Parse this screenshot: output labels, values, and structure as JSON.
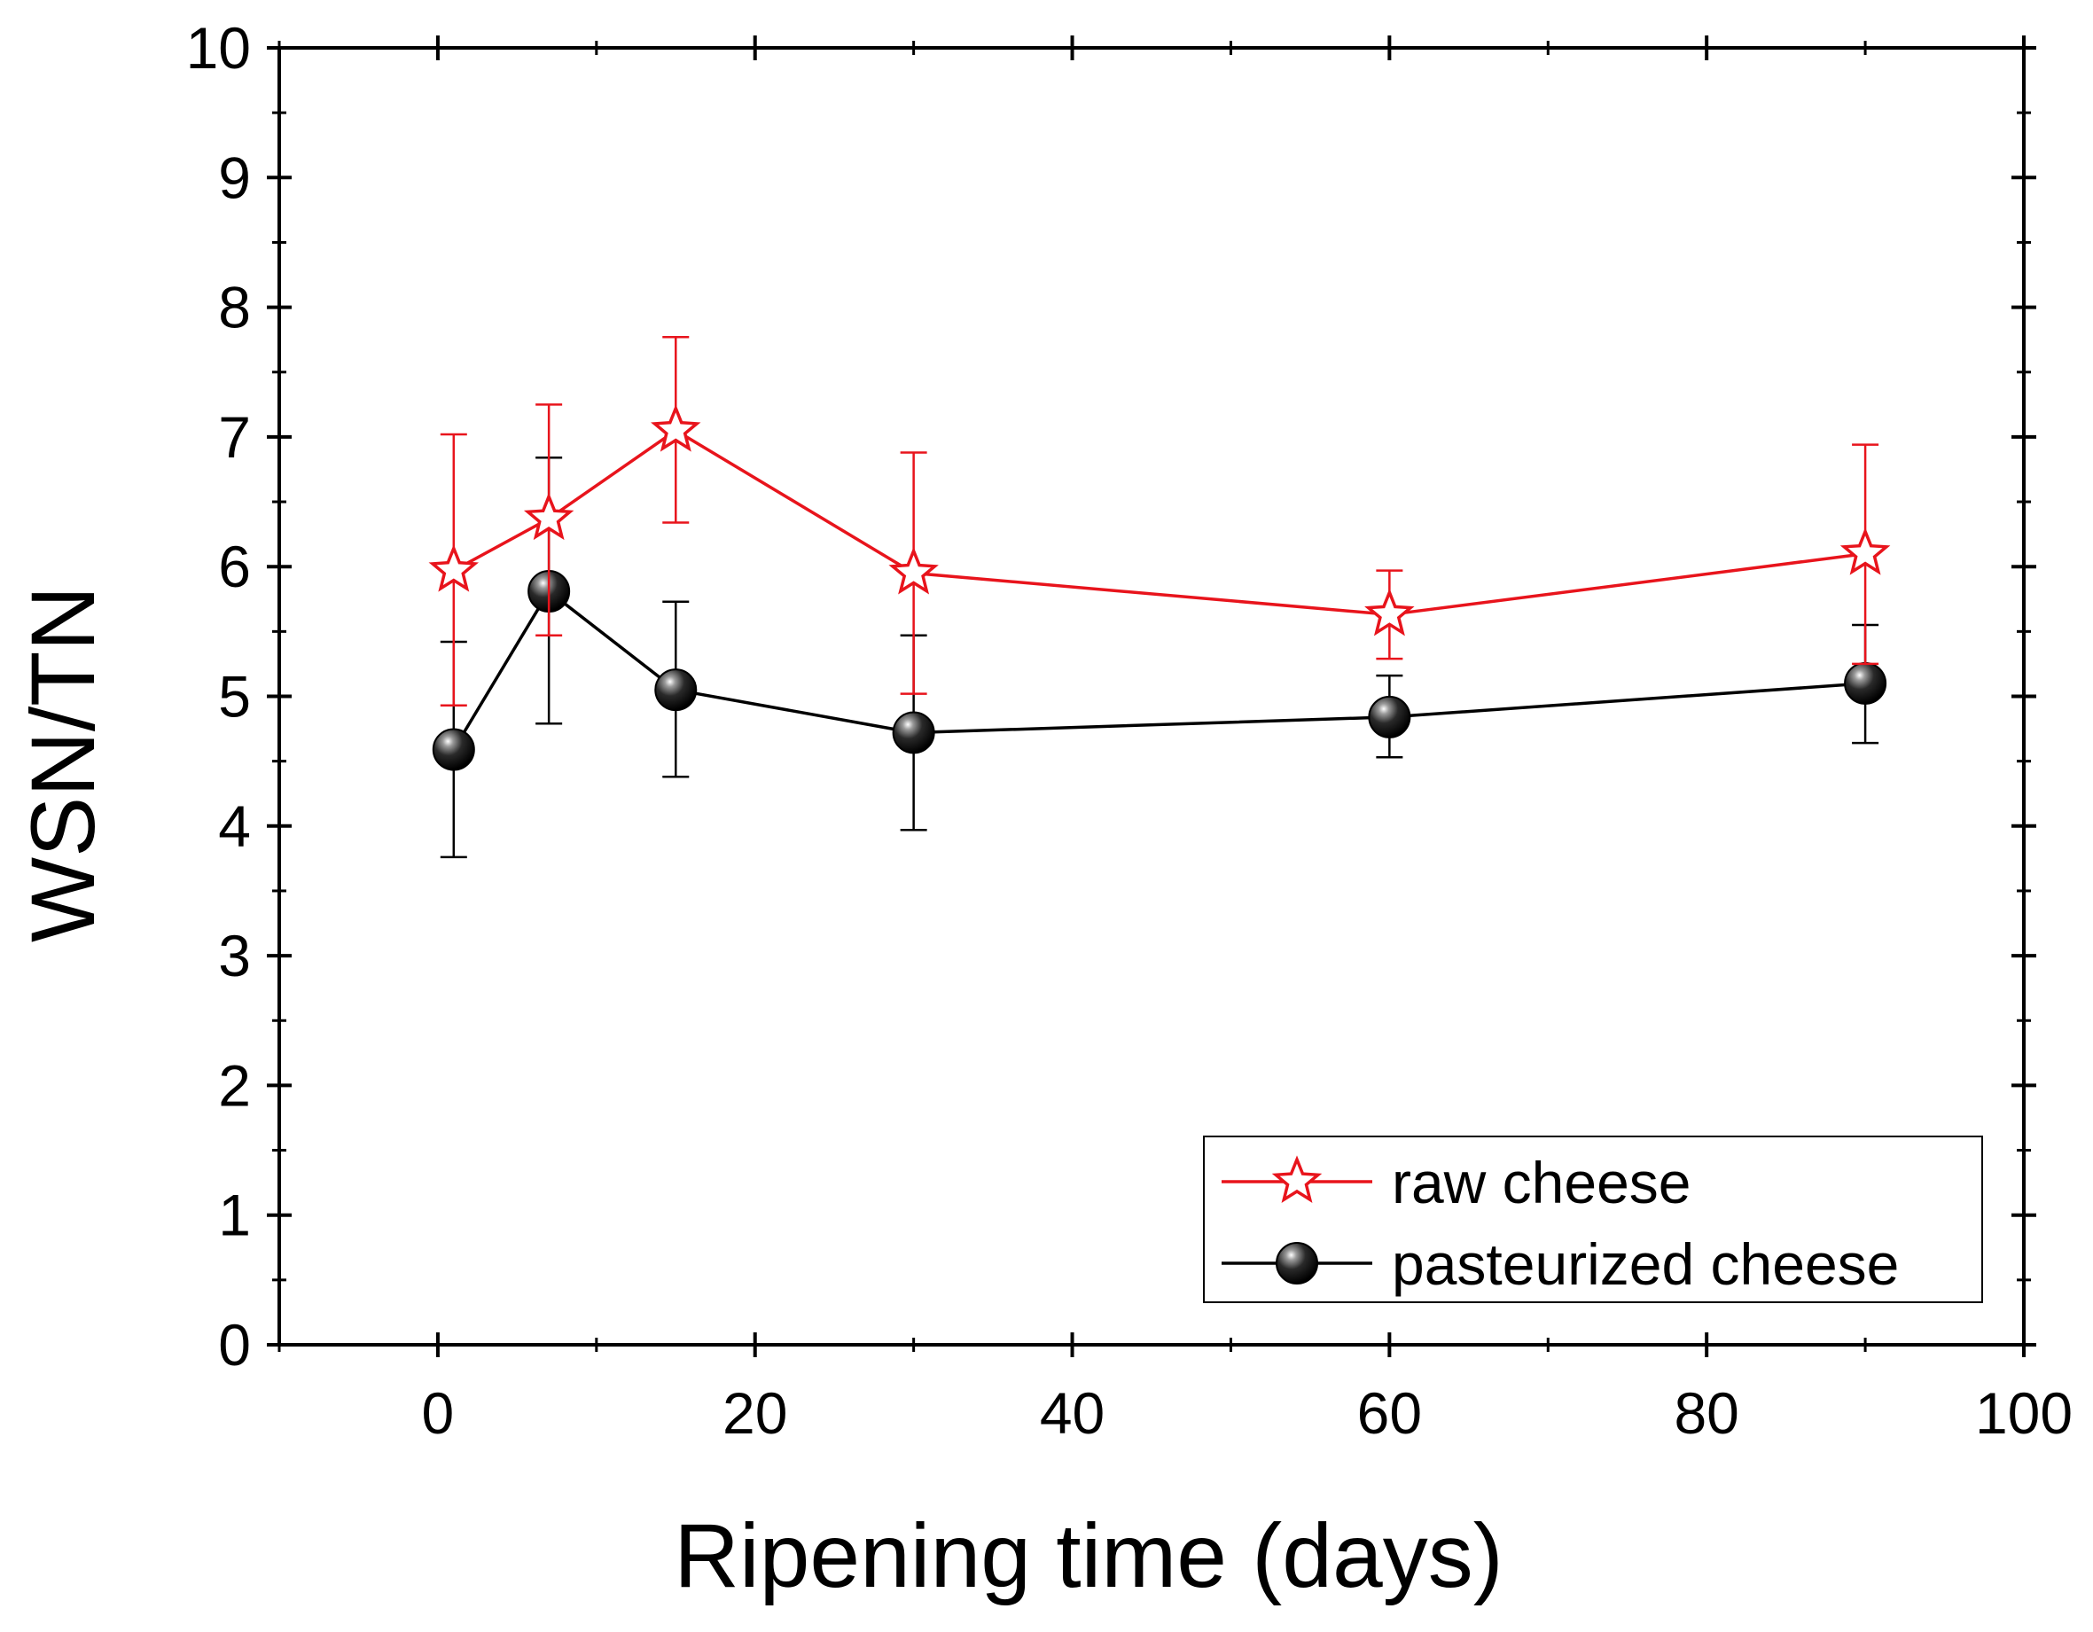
{
  "chart_data": {
    "type": "line",
    "title": "",
    "xlabel": "Ripening time (days)",
    "ylabel": "WSN/TN",
    "xlim": [
      -10,
      100
    ],
    "ylim": [
      0,
      10
    ],
    "x_ticks": [
      0,
      20,
      40,
      60,
      80,
      100
    ],
    "x_tick_labels": [
      "0",
      "20",
      "40",
      "60",
      "80",
      "100"
    ],
    "x_minor_ticks": [
      -10,
      10,
      30,
      50,
      70,
      90
    ],
    "y_ticks": [
      0,
      1,
      2,
      3,
      4,
      5,
      6,
      7,
      8,
      9,
      10
    ],
    "y_tick_labels": [
      "0",
      "1",
      "2",
      "3",
      "4",
      "5",
      "6",
      "7",
      "8",
      "9",
      "10"
    ],
    "y_minor_ticks": [
      0.5,
      1.5,
      2.5,
      3.5,
      4.5,
      5.5,
      6.5,
      7.5,
      8.5,
      9.5
    ],
    "grid": false,
    "legend_position": "bottom-right",
    "series": [
      {
        "name": "raw cheese",
        "color": "#e8141c",
        "marker": "star-open",
        "x": [
          1,
          7,
          15,
          30,
          60,
          90
        ],
        "values": [
          5.97,
          6.37,
          7.05,
          5.95,
          5.63,
          6.1
        ],
        "err_upper": [
          7.02,
          7.25,
          7.77,
          6.88,
          5.97,
          6.94
        ],
        "err_lower": [
          4.93,
          5.47,
          6.34,
          5.02,
          5.29,
          5.25
        ]
      },
      {
        "name": "pasteurized cheese",
        "color": "#000000",
        "marker": "sphere",
        "x": [
          1,
          7,
          15,
          30,
          60,
          90
        ],
        "values": [
          4.59,
          5.81,
          5.05,
          4.72,
          4.84,
          5.1
        ],
        "err_upper": [
          5.42,
          6.84,
          5.73,
          5.47,
          5.16,
          5.55
        ],
        "err_lower": [
          3.76,
          4.79,
          4.38,
          3.97,
          4.53,
          4.64
        ]
      }
    ]
  }
}
